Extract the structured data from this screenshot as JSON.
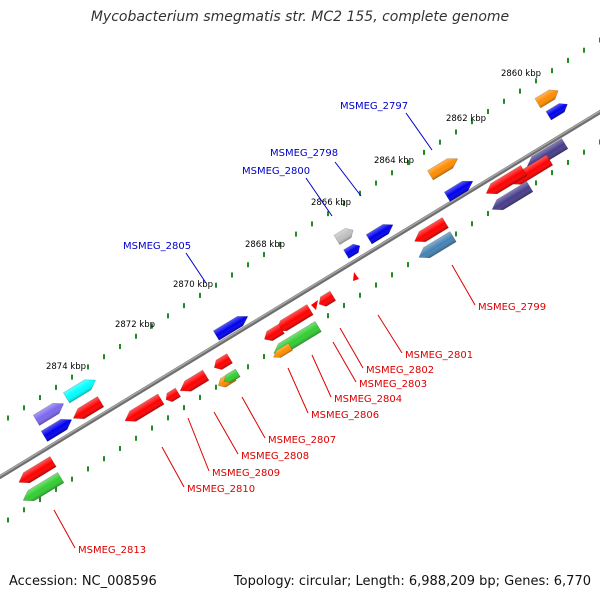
{
  "title": "Mycobacterium smegmatis str. MC2 155, complete genome",
  "footer": {
    "accession": "Accession: NC_008596",
    "summary": "Topology: circular; Length: 6,988,209 bp; Genes: 6,770"
  },
  "colors": {
    "backbone": "#808080",
    "ruler_dots": "#228b22",
    "label_blue": "#0000cc",
    "label_red": "#dd0000"
  },
  "ruler_labels": [
    "2860 kbp",
    "2862 kbp",
    "2864 kbp",
    "2866 kbp",
    "2868 kbp",
    "2870 kbp",
    "2872 kbp",
    "2874 kbp"
  ],
  "features": [
    {
      "name": "forward-strand-gene",
      "color": "#ff8c00",
      "strand": "forward",
      "row": 1
    },
    {
      "name": "forward-strand-gene",
      "color": "#0000ee",
      "strand": "forward",
      "row": 1
    },
    {
      "name": "forward-strand-gene",
      "color": "#0000ee",
      "strand": "forward",
      "row": 1
    },
    {
      "name": "forward-strand-gene",
      "color": "#ff8c00",
      "strand": "forward",
      "row": 1
    },
    {
      "name": "forward-strand-gene",
      "color": "#c0c0c0",
      "strand": "forward",
      "row": 1
    },
    {
      "name": "forward-strand-gene",
      "color": "#0000ee",
      "strand": "forward",
      "row": 1
    },
    {
      "name": "forward-strand-gene",
      "color": "#0000ee",
      "strand": "forward",
      "row": 1
    },
    {
      "name": "forward-strand-gene",
      "color": "#0000ee",
      "strand": "forward",
      "row": 1
    },
    {
      "name": "forward-strand-gene",
      "color": "#00ffff",
      "strand": "forward",
      "row": 1
    },
    {
      "name": "forward-strand-gene",
      "color": "#7b68ee",
      "strand": "forward",
      "row": 1
    },
    {
      "name": "forward-strand-gene",
      "color": "#0000ee",
      "strand": "forward",
      "row": 1
    },
    {
      "name": "reverse-strand-gene",
      "color": "#ff0000",
      "strand": "reverse",
      "row": 1
    },
    {
      "name": "reverse-strand-gene",
      "color": "#483d8b",
      "strand": "reverse",
      "row": 1
    },
    {
      "name": "reverse-strand-gene",
      "color": "#ff0000",
      "strand": "reverse",
      "row": 1
    },
    {
      "name": "reverse-strand-gene",
      "color": "#ff0000",
      "strand": "reverse",
      "row": 1
    },
    {
      "name": "reverse-strand-gene",
      "color": "#ff0000",
      "strand": "reverse",
      "row": 1
    },
    {
      "name": "reverse-strand-gene",
      "color": "#ff0000",
      "strand": "reverse",
      "row": 1
    },
    {
      "name": "reverse-strand-gene",
      "color": "#ff0000",
      "strand": "reverse",
      "row": 1
    },
    {
      "name": "reverse-strand-gene",
      "color": "#ff0000",
      "strand": "reverse",
      "row": 1
    },
    {
      "name": "reverse-strand-gene",
      "color": "#ff0000",
      "strand": "reverse",
      "row": 1
    },
    {
      "name": "reverse-strand-gene",
      "color": "#ff0000",
      "strand": "reverse",
      "row": 1
    },
    {
      "name": "reverse-strand-gene",
      "color": "#ff0000",
      "strand": "reverse",
      "row": 1
    },
    {
      "name": "reverse-strand-gene",
      "color": "#ff0000",
      "strand": "reverse",
      "row": 1
    },
    {
      "name": "reverse-strand-gene",
      "color": "#ff0000",
      "strand": "reverse",
      "row": 1
    },
    {
      "name": "reverse-strand-gene",
      "color": "#483d8b",
      "strand": "reverse",
      "row": 2
    },
    {
      "name": "reverse-strand-gene",
      "color": "#4682b4",
      "strand": "reverse",
      "row": 2
    },
    {
      "name": "reverse-strand-gene",
      "color": "#32cd32",
      "strand": "reverse",
      "row": 2
    },
    {
      "name": "reverse-strand-gene",
      "color": "#ff8c00",
      "strand": "reverse",
      "row": 2
    },
    {
      "name": "reverse-strand-gene",
      "color": "#32cd32",
      "strand": "reverse",
      "row": 2
    },
    {
      "name": "reverse-strand-gene",
      "color": "#ff8c00",
      "strand": "reverse",
      "row": 2
    },
    {
      "name": "reverse-strand-gene",
      "color": "#32cd32",
      "strand": "reverse",
      "row": 2
    }
  ],
  "gene_labels": [
    {
      "text": "MSMEG_2797",
      "color": "#0000cc"
    },
    {
      "text": "MSMEG_2798",
      "color": "#0000cc"
    },
    {
      "text": "MSMEG_2800",
      "color": "#0000cc"
    },
    {
      "text": "MSMEG_2805",
      "color": "#0000cc"
    },
    {
      "text": "MSMEG_2799",
      "color": "#dd0000"
    },
    {
      "text": "MSMEG_2801",
      "color": "#dd0000"
    },
    {
      "text": "MSMEG_2802",
      "color": "#dd0000"
    },
    {
      "text": "MSMEG_2803",
      "color": "#dd0000"
    },
    {
      "text": "MSMEG_2804",
      "color": "#dd0000"
    },
    {
      "text": "MSMEG_2806",
      "color": "#dd0000"
    },
    {
      "text": "MSMEG_2807",
      "color": "#dd0000"
    },
    {
      "text": "MSMEG_2808",
      "color": "#dd0000"
    },
    {
      "text": "MSMEG_2809",
      "color": "#dd0000"
    },
    {
      "text": "MSMEG_2810",
      "color": "#dd0000"
    },
    {
      "text": "MSMEG_2813",
      "color": "#dd0000"
    }
  ]
}
